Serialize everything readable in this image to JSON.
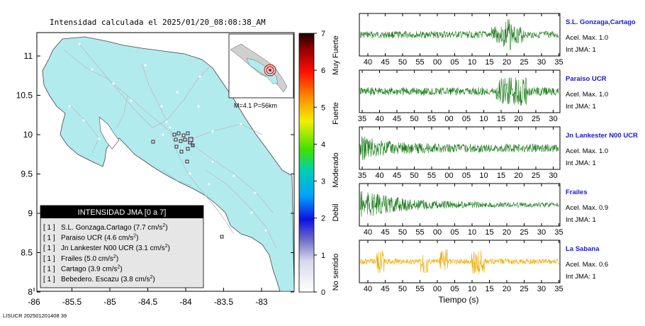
{
  "title": "Intensidad calculada el 2025/01/20_08:08:38_AM",
  "footer": "LISUCR 202501201408 39",
  "map": {
    "y_ticks": [
      "11",
      "10.5",
      "10",
      "9.5",
      "9",
      "8.5",
      "8"
    ],
    "x_ticks": [
      "-86",
      "-85.5",
      "-85",
      "-84.5",
      "-84",
      "-83.5",
      "-83"
    ],
    "inset_label": "M=4.1 P=56km",
    "colors": {
      "land": "#b2ebee",
      "water": "#ffffff",
      "roads": "#b8b8b8",
      "border": "#4a4a4a"
    }
  },
  "legend": {
    "title": "INTENSIDAD JMA [0 a 7]",
    "rows": [
      {
        "level": "[ 1 ]",
        "station": "S.L. Gonzaga.Cartago",
        "value": "(7.7 cm/s",
        "unit_sup": "2",
        ")": ")"
      },
      {
        "level": "[ 1 ]",
        "station": "Paraiso UCR",
        "value": "(4.6 cm/s",
        "unit_sup": "2"
      },
      {
        "level": "[ 1 ]",
        "station": "Jn Lankester N00 UCR",
        "value": "(3.1 cm/s",
        "unit_sup": "2"
      },
      {
        "level": "[ 1 ]",
        "station": "Frailes",
        "value": "(5.0 cm/s",
        "unit_sup": "2"
      },
      {
        "level": "[ 1 ]",
        "station": "Cartago",
        "value": "(3.9 cm/s",
        "unit_sup": "2"
      },
      {
        "level": "[ 1 ]",
        "station": "Bebedero. Escazu",
        "value": "(3.8 cm/s",
        "unit_sup": "2"
      }
    ]
  },
  "colorbar": {
    "ticks": [
      "7",
      "6",
      "5",
      "4",
      "3",
      "2",
      "1",
      "0"
    ],
    "labels": [
      "Muy Fuerte",
      "Fuerte",
      "Moderado",
      "Debil",
      "No sentido"
    ]
  },
  "chart_data": {
    "type": "line",
    "xlabel": "Tiempo (s)",
    "traces": [
      {
        "name": "S.L. Gonzaga,Cartago",
        "accel": "Acel. Max. 1.0",
        "jma": "Int JMA: 1",
        "color": "#1a7a1a",
        "ticks": [
          "40",
          "45",
          "50",
          "55",
          "00",
          "05",
          "10",
          "15",
          "20",
          "25",
          "30",
          "35"
        ],
        "peak_time": "20"
      },
      {
        "name": "Paraiso UCR",
        "accel": "Acel. Max. 1.0",
        "jma": "Int JMA: 1",
        "color": "#1a7a1a",
        "ticks": [
          "35",
          "40",
          "45",
          "50",
          "55",
          "00",
          "05",
          "10",
          "15",
          "20",
          "25",
          "30"
        ],
        "peak_time": "20"
      },
      {
        "name": "Jn Lankester N00 UCR",
        "accel": "Acel. Max. 1.0",
        "jma": "Int JMA: 1",
        "color": "#1a7a1a",
        "ticks": [
          "35",
          "40",
          "45",
          "50",
          "55",
          "00",
          "05",
          "10",
          "15",
          "20",
          "25",
          "30"
        ],
        "peak_time": "35"
      },
      {
        "name": "Frailes",
        "accel": "Acel. Max. 0.9",
        "jma": "Int JMA: 1",
        "color": "#1a7a1a",
        "ticks": [
          "40",
          "45",
          "50",
          "55",
          "00",
          "05",
          "10",
          "15",
          "20",
          "25",
          "30",
          "35"
        ],
        "peak_time": "40"
      },
      {
        "name": "La Sabana",
        "accel": "Acel. Max. 0.6",
        "jma": "Int JMA: 1",
        "color": "#f0a800",
        "ticks": [
          "40",
          "45",
          "50",
          "55",
          "00",
          "05",
          "10",
          "15",
          "20",
          "25",
          "30",
          "35"
        ],
        "peak_time": "00"
      }
    ]
  }
}
